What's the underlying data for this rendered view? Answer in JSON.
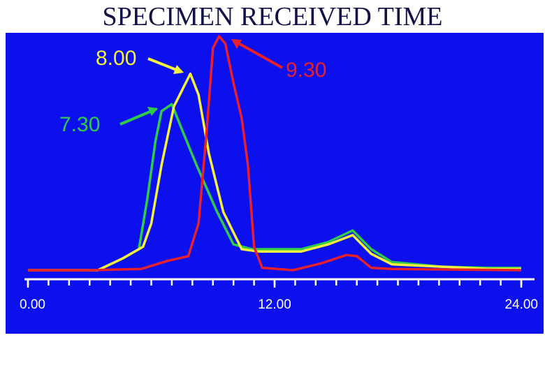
{
  "chart_data": {
    "type": "line",
    "title": "SPECIMEN RECEIVED TIME",
    "xlim": [
      0,
      24
    ],
    "ylim": [
      0,
      100
    ],
    "xticks": [
      {
        "value": 0,
        "label": "0.00"
      },
      {
        "value": 12,
        "label": "12.00"
      },
      {
        "value": 24,
        "label": "24.00"
      }
    ],
    "minor_xticks": [
      0,
      1,
      2,
      3,
      4,
      5,
      6,
      7,
      8,
      9,
      10,
      11,
      12,
      13,
      14,
      15,
      16,
      17,
      18,
      19,
      20,
      21,
      22,
      23,
      24
    ],
    "series": [
      {
        "name": "7.30",
        "color": "#2ecc4a",
        "x": [
          0,
          3.4,
          4.6,
          5.4,
          5.8,
          6.2,
          6.5,
          7.0,
          7.5,
          8.2,
          9.2,
          10.0,
          10.9,
          13.3,
          14.6,
          15.8,
          16.7,
          17.7,
          20.1,
          22.4,
          24
        ],
        "values": [
          0,
          0,
          5,
          9,
          30,
          55,
          68,
          71,
          60,
          45,
          25,
          11,
          9,
          9,
          12,
          17,
          9,
          3.5,
          1.5,
          1,
          1
        ]
      },
      {
        "name": "8.00",
        "color": "#f5f03c",
        "x": [
          0,
          3.4,
          4.6,
          5.6,
          6.0,
          6.5,
          7.1,
          7.9,
          8.3,
          8.8,
          9.5,
          10.4,
          11.2,
          13.3,
          14.6,
          15.8,
          16.7,
          17.7,
          20.1,
          22.4,
          24
        ],
        "values": [
          0,
          0,
          5,
          10,
          20,
          45,
          70,
          84,
          75,
          50,
          25,
          9,
          8,
          8,
          11,
          15,
          7,
          2.5,
          1.5,
          0.5,
          0.5
        ]
      },
      {
        "name": "9.30",
        "color": "#e8202a",
        "x": [
          0,
          3,
          5.5,
          6.8,
          7.8,
          8.3,
          8.7,
          9.0,
          9.3,
          9.6,
          10.0,
          10.4,
          10.7,
          11.0,
          11.4,
          12.9,
          14.3,
          15.5,
          16.0,
          16.7,
          17.7,
          24
        ],
        "values": [
          0,
          0,
          0.5,
          4,
          6,
          20,
          60,
          95,
          100,
          97,
          80,
          65,
          45,
          10,
          1,
          0,
          3,
          6.5,
          6,
          1,
          0.5,
          0
        ]
      }
    ]
  }
}
